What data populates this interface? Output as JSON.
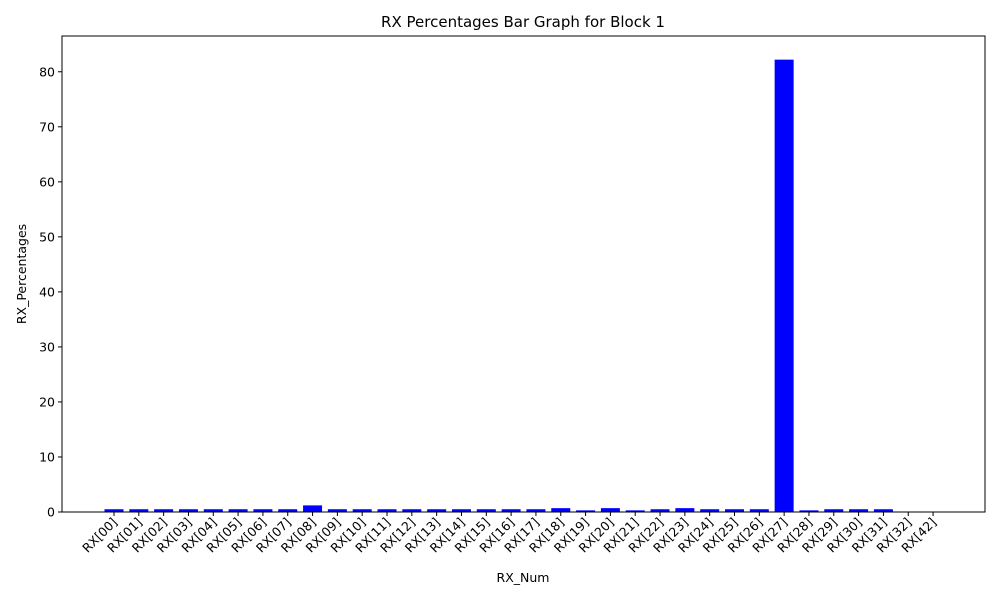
{
  "chart_data": {
    "type": "bar",
    "title": "RX Percentages Bar Graph for Block 1",
    "xlabel": "RX_Num",
    "ylabel": "RX_Percentages",
    "ylim": [
      0,
      86.5
    ],
    "yticks": [
      0,
      10,
      20,
      30,
      40,
      50,
      60,
      70,
      80
    ],
    "grid": false,
    "bar_color": "#0000ff",
    "categories": [
      "RX[00]",
      "RX[01]",
      "RX[02]",
      "RX[03]",
      "RX[04]",
      "RX[05]",
      "RX[06]",
      "RX[07]",
      "RX[08]",
      "RX[09]",
      "RX[10]",
      "RX[11]",
      "RX[12]",
      "RX[13]",
      "RX[14]",
      "RX[15]",
      "RX[16]",
      "RX[17]",
      "RX[18]",
      "RX[19]",
      "RX[20]",
      "RX[21]",
      "RX[22]",
      "RX[23]",
      "RX[24]",
      "RX[25]",
      "RX[26]",
      "RX[27]",
      "RX[28]",
      "RX[29]",
      "RX[30]",
      "RX[31]",
      "RX[32]",
      "RX[42]"
    ],
    "values": [
      0.5,
      0.5,
      0.5,
      0.5,
      0.5,
      0.5,
      0.5,
      0.5,
      1.2,
      0.5,
      0.5,
      0.5,
      0.5,
      0.5,
      0.5,
      0.5,
      0.5,
      0.5,
      0.7,
      0.3,
      0.7,
      0.3,
      0.5,
      0.7,
      0.5,
      0.5,
      0.5,
      82.2,
      0.3,
      0.5,
      0.5,
      0.5,
      0,
      0
    ]
  }
}
